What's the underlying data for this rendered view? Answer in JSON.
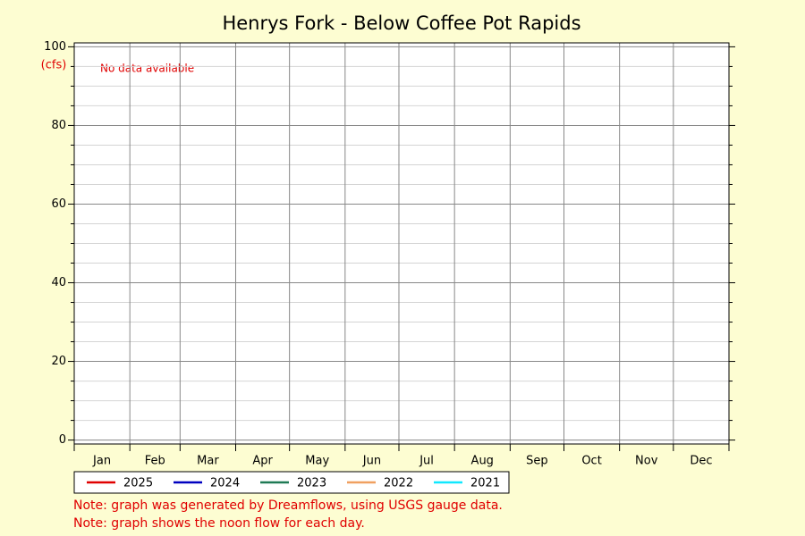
{
  "chart_data": {
    "type": "line",
    "title": "Henrys Fork - Below Coffee Pot Rapids",
    "ylabel": "(cfs)",
    "annotation": "No data available",
    "notes": [
      "Note: graph was generated by Dreamflows, using USGS gauge data.",
      "Note: graph shows the noon flow for each day."
    ],
    "categories": [
      "Jan",
      "Feb",
      "Mar",
      "Apr",
      "May",
      "Jun",
      "Jul",
      "Aug",
      "Sep",
      "Oct",
      "Nov",
      "Dec"
    ],
    "xlim": [
      0,
      365
    ],
    "xticks": [
      0,
      31,
      59,
      90,
      120,
      151,
      181,
      212,
      243,
      273,
      304,
      334,
      365
    ],
    "ylim": [
      -1,
      101
    ],
    "yticks": [
      0,
      20,
      40,
      60,
      80,
      100
    ],
    "minor_yticks": [
      5,
      10,
      15,
      25,
      30,
      35,
      45,
      50,
      55,
      65,
      70,
      75,
      85,
      90,
      95
    ],
    "grid": true,
    "series": [
      {
        "name": "2025",
        "color": "#e00000",
        "values": [
          null,
          null,
          null,
          null,
          null,
          null,
          null,
          null,
          null,
          null,
          null,
          null
        ]
      },
      {
        "name": "2024",
        "color": "#0000c0",
        "values": [
          null,
          null,
          null,
          null,
          null,
          null,
          null,
          null,
          null,
          null,
          null,
          null
        ]
      },
      {
        "name": "2023",
        "color": "#1f7a55",
        "values": [
          null,
          null,
          null,
          null,
          null,
          null,
          null,
          null,
          null,
          null,
          null,
          null
        ]
      },
      {
        "name": "2022",
        "color": "#f0a060",
        "values": [
          null,
          null,
          null,
          null,
          null,
          null,
          null,
          null,
          null,
          null,
          null,
          null
        ]
      },
      {
        "name": "2021",
        "color": "#10e8ff",
        "values": [
          null,
          null,
          null,
          null,
          null,
          null,
          null,
          null,
          null,
          null,
          null,
          null
        ]
      }
    ]
  }
}
